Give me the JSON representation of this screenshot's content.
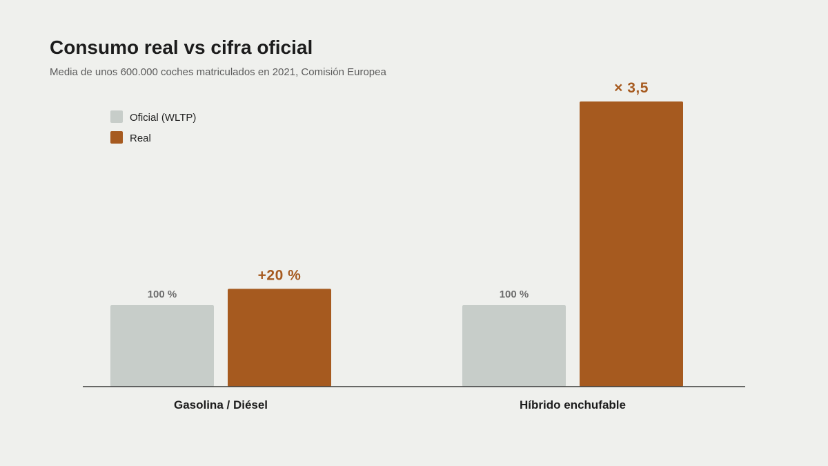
{
  "colors": {
    "background": "#eff0ed",
    "official": "#c7cdc9",
    "real": "#a65a1f",
    "axis": "#3a3a3a"
  },
  "chart_data": {
    "type": "bar",
    "title": "Consumo real vs cifra oficial",
    "subtitle": "Media de unos 600.000 coches matriculados en 2021, Comisión Europea",
    "xlabel": "",
    "ylabel": "",
    "categories": [
      "Gasolina / Diésel",
      "Híbrido enchufable"
    ],
    "series": [
      {
        "name": "Oficial (WLTP)",
        "values": [
          100,
          100
        ],
        "labels": [
          "100 %",
          "100 %"
        ],
        "color": "#c7cdc9"
      },
      {
        "name": "Real",
        "values": [
          120,
          350
        ],
        "labels": [
          "+20 %",
          "× 3,5"
        ],
        "color": "#a65a1f"
      }
    ],
    "ylim": [
      0,
      350
    ],
    "grid": false,
    "legend": "top-left"
  }
}
